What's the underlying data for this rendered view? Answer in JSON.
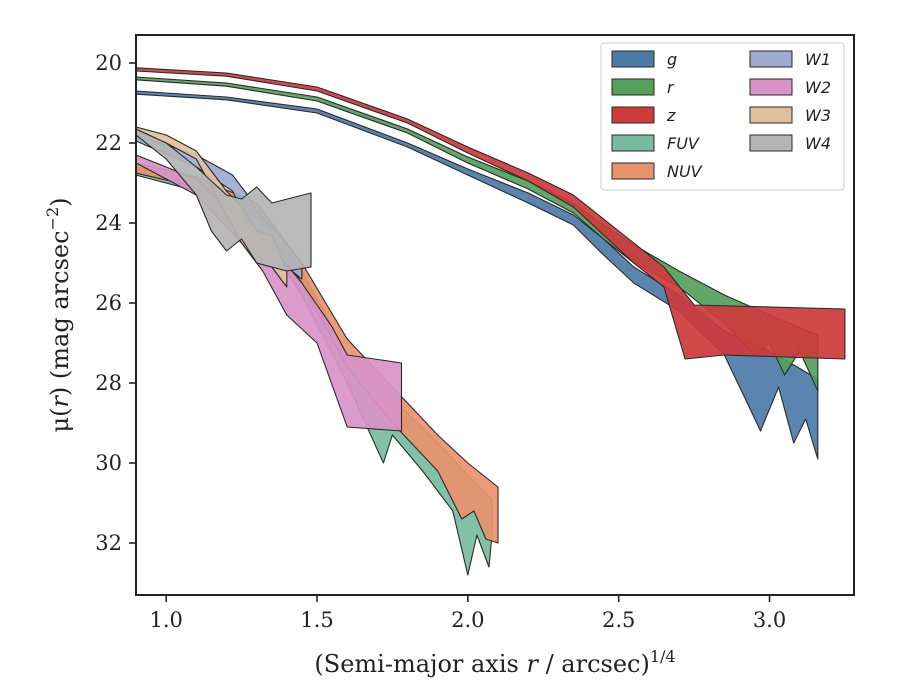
{
  "chart_data": {
    "type": "area",
    "xlabel": "(Semi-major axis r / arcsec)",
    "xlabel_var": "r",
    "xlabel_sup": "1/4",
    "ylabel_pre": "μ(",
    "ylabel_var": "r",
    "ylabel_post": ") (mag arcsec",
    "ylabel_sup": "−2",
    "ylabel_end": ")",
    "xlim": [
      0.9,
      3.28
    ],
    "ylim": [
      33.3,
      19.3
    ],
    "y_inverted": true,
    "x_ticks": [
      1.0,
      1.5,
      2.0,
      2.5,
      3.0
    ],
    "x_tick_labels": [
      "1.0",
      "1.5",
      "2.0",
      "2.5",
      "3.0"
    ],
    "y_ticks": [
      20,
      22,
      24,
      26,
      28,
      30,
      32
    ],
    "y_tick_labels": [
      "20",
      "22",
      "24",
      "26",
      "28",
      "30",
      "32"
    ],
    "grid": false,
    "legend": {
      "placement": "top-right",
      "columns": 2
    },
    "series": [
      {
        "name": "g",
        "color": "#4c7ba8",
        "upper": [
          [
            0.9,
            20.7
          ],
          [
            1.2,
            20.85
          ],
          [
            1.5,
            21.15
          ],
          [
            1.8,
            22.0
          ],
          [
            2.0,
            22.65
          ],
          [
            2.2,
            23.25
          ],
          [
            2.35,
            23.8
          ],
          [
            2.45,
            24.4
          ],
          [
            2.55,
            25.1
          ],
          [
            2.7,
            25.8
          ],
          [
            2.85,
            26.7
          ],
          [
            3.0,
            27.2
          ],
          [
            3.16,
            27.9
          ]
        ],
        "lower": [
          [
            0.9,
            20.78
          ],
          [
            1.2,
            20.92
          ],
          [
            1.5,
            21.25
          ],
          [
            1.8,
            22.1
          ],
          [
            2.0,
            22.8
          ],
          [
            2.2,
            23.5
          ],
          [
            2.35,
            24.05
          ],
          [
            2.45,
            24.8
          ],
          [
            2.55,
            25.5
          ],
          [
            2.7,
            26.2
          ],
          [
            2.85,
            27.3
          ],
          [
            2.92,
            28.4
          ],
          [
            2.97,
            29.2
          ],
          [
            3.03,
            28.1
          ],
          [
            3.08,
            29.5
          ],
          [
            3.12,
            28.9
          ],
          [
            3.16,
            29.9
          ]
        ]
      },
      {
        "name": "r",
        "color": "#55a05a",
        "upper": [
          [
            0.9,
            20.35
          ],
          [
            1.2,
            20.5
          ],
          [
            1.5,
            20.85
          ],
          [
            1.8,
            21.65
          ],
          [
            2.0,
            22.35
          ],
          [
            2.2,
            22.95
          ],
          [
            2.35,
            23.5
          ],
          [
            2.45,
            24.05
          ],
          [
            2.55,
            24.55
          ],
          [
            2.7,
            25.2
          ],
          [
            2.85,
            25.8
          ],
          [
            3.0,
            26.3
          ],
          [
            3.16,
            26.8
          ]
        ],
        "lower": [
          [
            0.9,
            20.42
          ],
          [
            1.2,
            20.58
          ],
          [
            1.5,
            20.95
          ],
          [
            1.8,
            21.75
          ],
          [
            2.0,
            22.5
          ],
          [
            2.2,
            23.15
          ],
          [
            2.35,
            23.75
          ],
          [
            2.45,
            24.4
          ],
          [
            2.55,
            25.0
          ],
          [
            2.7,
            25.6
          ],
          [
            2.85,
            26.5
          ],
          [
            2.95,
            27.3
          ],
          [
            3.0,
            27.0
          ],
          [
            3.05,
            27.8
          ],
          [
            3.1,
            27.2
          ],
          [
            3.16,
            28.2
          ]
        ]
      },
      {
        "name": "z",
        "color": "#cc3a3c",
        "upper": [
          [
            0.9,
            20.12
          ],
          [
            1.2,
            20.25
          ],
          [
            1.5,
            20.6
          ],
          [
            1.8,
            21.4
          ],
          [
            2.0,
            22.1
          ],
          [
            2.2,
            22.75
          ],
          [
            2.35,
            23.3
          ],
          [
            2.45,
            23.9
          ],
          [
            2.55,
            24.5
          ],
          [
            2.65,
            25.1
          ],
          [
            2.75,
            26.05
          ],
          [
            3.25,
            26.15
          ]
        ],
        "lower": [
          [
            0.9,
            20.2
          ],
          [
            1.2,
            20.33
          ],
          [
            1.5,
            20.7
          ],
          [
            1.8,
            21.5
          ],
          [
            2.0,
            22.25
          ],
          [
            2.2,
            22.95
          ],
          [
            2.35,
            23.6
          ],
          [
            2.45,
            24.3
          ],
          [
            2.55,
            25.0
          ],
          [
            2.65,
            25.6
          ],
          [
            2.72,
            27.4
          ],
          [
            2.85,
            27.3
          ],
          [
            3.25,
            27.4
          ]
        ]
      },
      {
        "name": "FUV",
        "color": "#77bca0",
        "upper": [
          [
            0.9,
            22.6
          ],
          [
            1.1,
            22.9
          ],
          [
            1.3,
            23.6
          ],
          [
            1.45,
            25.2
          ],
          [
            1.6,
            27.3
          ],
          [
            1.75,
            28.4
          ],
          [
            1.9,
            29.5
          ],
          [
            2.0,
            30.3
          ],
          [
            2.08,
            30.9
          ]
        ],
        "lower": [
          [
            0.9,
            22.8
          ],
          [
            1.1,
            23.2
          ],
          [
            1.3,
            24.1
          ],
          [
            1.45,
            25.8
          ],
          [
            1.6,
            28.0
          ],
          [
            1.72,
            30.0
          ],
          [
            1.75,
            29.3
          ],
          [
            1.85,
            30.2
          ],
          [
            1.95,
            31.2
          ],
          [
            2.0,
            32.8
          ],
          [
            2.03,
            31.8
          ],
          [
            2.07,
            32.6
          ],
          [
            2.08,
            31.8
          ]
        ]
      },
      {
        "name": "NUV",
        "color": "#e8926b",
        "upper": [
          [
            0.9,
            22.5
          ],
          [
            1.1,
            22.85
          ],
          [
            1.3,
            23.5
          ],
          [
            1.45,
            25.0
          ],
          [
            1.6,
            26.9
          ],
          [
            1.75,
            28.1
          ],
          [
            1.9,
            29.3
          ],
          [
            2.0,
            30.0
          ],
          [
            2.1,
            30.6
          ]
        ],
        "lower": [
          [
            0.9,
            22.75
          ],
          [
            1.1,
            23.1
          ],
          [
            1.3,
            23.9
          ],
          [
            1.45,
            25.5
          ],
          [
            1.6,
            27.6
          ],
          [
            1.75,
            29.0
          ],
          [
            1.9,
            30.2
          ],
          [
            1.98,
            31.4
          ],
          [
            2.02,
            31.2
          ],
          [
            2.06,
            31.9
          ],
          [
            2.1,
            32.0
          ]
        ]
      },
      {
        "name": "W1",
        "color": "#9eabcf",
        "upper": [
          [
            0.9,
            21.8
          ],
          [
            1.1,
            22.3
          ],
          [
            1.22,
            22.8
          ],
          [
            1.27,
            23.3
          ],
          [
            1.3,
            23.7
          ],
          [
            1.35,
            24.1
          ],
          [
            1.45,
            25.0
          ]
        ],
        "lower": [
          [
            0.9,
            21.95
          ],
          [
            1.1,
            22.6
          ],
          [
            1.22,
            23.2
          ],
          [
            1.27,
            24.0
          ],
          [
            1.3,
            24.4
          ],
          [
            1.35,
            24.8
          ],
          [
            1.45,
            25.4
          ]
        ]
      },
      {
        "name": "W2",
        "color": "#d893c8",
        "upper": [
          [
            0.9,
            22.3
          ],
          [
            1.1,
            22.9
          ],
          [
            1.25,
            24.0
          ],
          [
            1.35,
            24.6
          ],
          [
            1.45,
            25.5
          ],
          [
            1.55,
            26.6
          ],
          [
            1.6,
            27.3
          ],
          [
            1.78,
            27.5
          ]
        ],
        "lower": [
          [
            0.9,
            22.5
          ],
          [
            1.1,
            23.3
          ],
          [
            1.25,
            24.5
          ],
          [
            1.32,
            25.2
          ],
          [
            1.4,
            26.3
          ],
          [
            1.5,
            27.0
          ],
          [
            1.6,
            29.1
          ],
          [
            1.78,
            29.2
          ]
        ]
      },
      {
        "name": "W3",
        "color": "#dfc19d",
        "upper": [
          [
            0.9,
            21.6
          ],
          [
            1.0,
            21.8
          ],
          [
            1.1,
            22.2
          ],
          [
            1.15,
            22.7
          ],
          [
            1.2,
            23.2
          ],
          [
            1.25,
            23.6
          ],
          [
            1.3,
            24.2
          ],
          [
            1.35,
            24.3
          ],
          [
            1.4,
            25.2
          ]
        ],
        "lower": [
          [
            0.9,
            21.7
          ],
          [
            1.0,
            22.0
          ],
          [
            1.1,
            22.4
          ],
          [
            1.15,
            23.1
          ],
          [
            1.2,
            23.8
          ],
          [
            1.25,
            24.5
          ],
          [
            1.3,
            25.0
          ],
          [
            1.35,
            25.1
          ],
          [
            1.4,
            25.6
          ]
        ]
      },
      {
        "name": "W4",
        "color": "#b4b4b4",
        "upper": [
          [
            0.9,
            21.65
          ],
          [
            1.0,
            22.0
          ],
          [
            1.1,
            22.6
          ],
          [
            1.2,
            23.3
          ],
          [
            1.25,
            23.4
          ],
          [
            1.3,
            23.1
          ],
          [
            1.35,
            23.5
          ],
          [
            1.48,
            23.25
          ]
        ],
        "lower": [
          [
            0.9,
            21.8
          ],
          [
            1.0,
            22.4
          ],
          [
            1.1,
            23.3
          ],
          [
            1.15,
            24.2
          ],
          [
            1.2,
            24.7
          ],
          [
            1.25,
            24.4
          ],
          [
            1.3,
            25.0
          ],
          [
            1.4,
            25.2
          ],
          [
            1.48,
            25.1
          ]
        ]
      }
    ]
  }
}
